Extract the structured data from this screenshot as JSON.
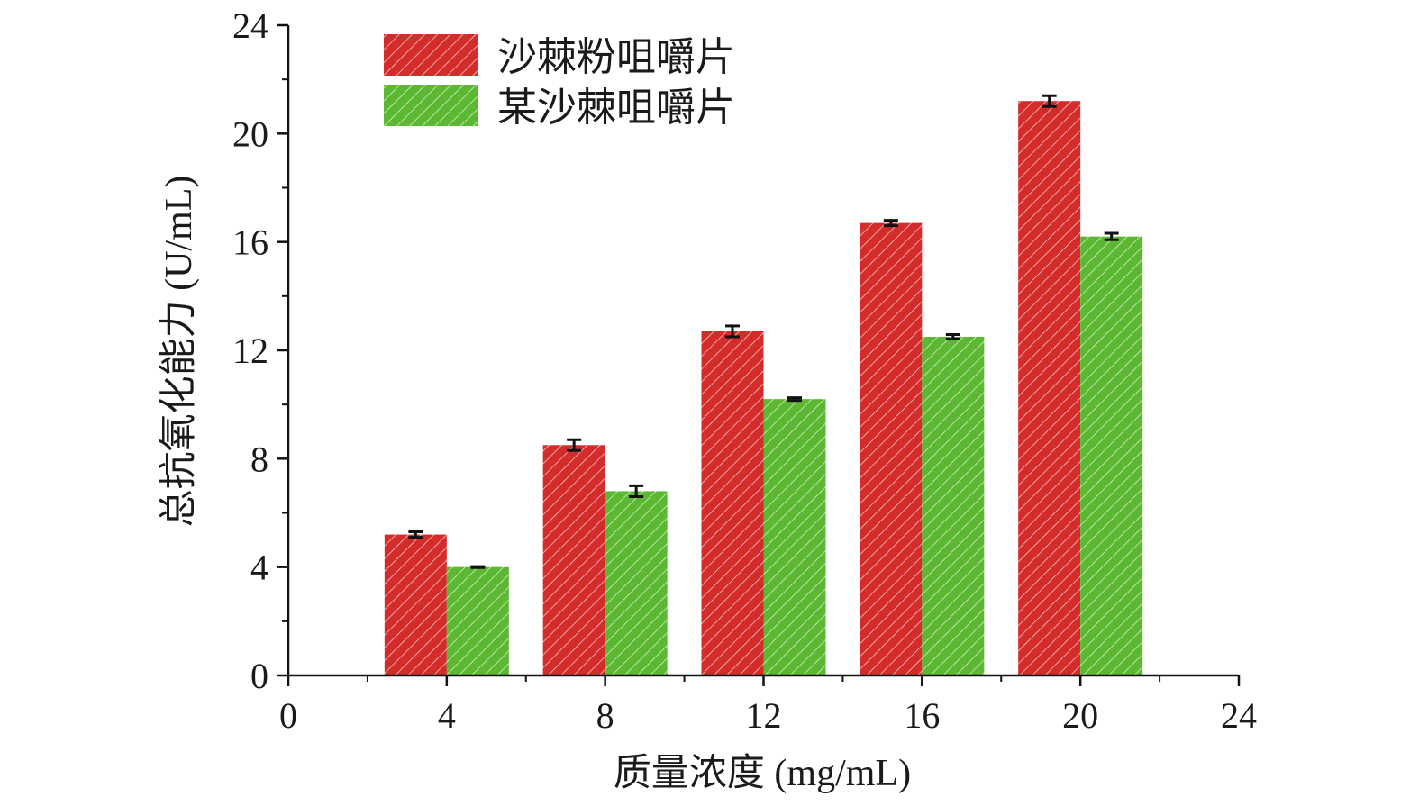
{
  "chart_data": {
    "type": "bar",
    "xlabel": "质量浓度 (mg/mL)",
    "ylabel": "总抗氧化能力 (U/mL)",
    "xlim": [
      0,
      24
    ],
    "ylim": [
      0,
      24
    ],
    "x_ticks": [
      "0",
      "4",
      "8",
      "12",
      "16",
      "20",
      "24"
    ],
    "y_ticks": [
      "0",
      "4",
      "8",
      "12",
      "16",
      "20",
      "24"
    ],
    "categories": [
      4,
      8,
      12,
      16,
      20
    ],
    "series": [
      {
        "name": "沙棘粉咀嚼片",
        "color": "#d42b2b",
        "values": [
          5.2,
          8.5,
          12.7,
          16.7,
          21.2
        ],
        "errors": [
          0.1,
          0.2,
          0.2,
          0.1,
          0.2
        ]
      },
      {
        "name": "某沙棘咀嚼片",
        "color": "#5cb832",
        "values": [
          4.0,
          6.8,
          10.2,
          12.5,
          16.2
        ],
        "errors": [
          0.02,
          0.2,
          0.05,
          0.08,
          0.12
        ]
      }
    ],
    "legend_position": "top-left",
    "grid": false
  }
}
